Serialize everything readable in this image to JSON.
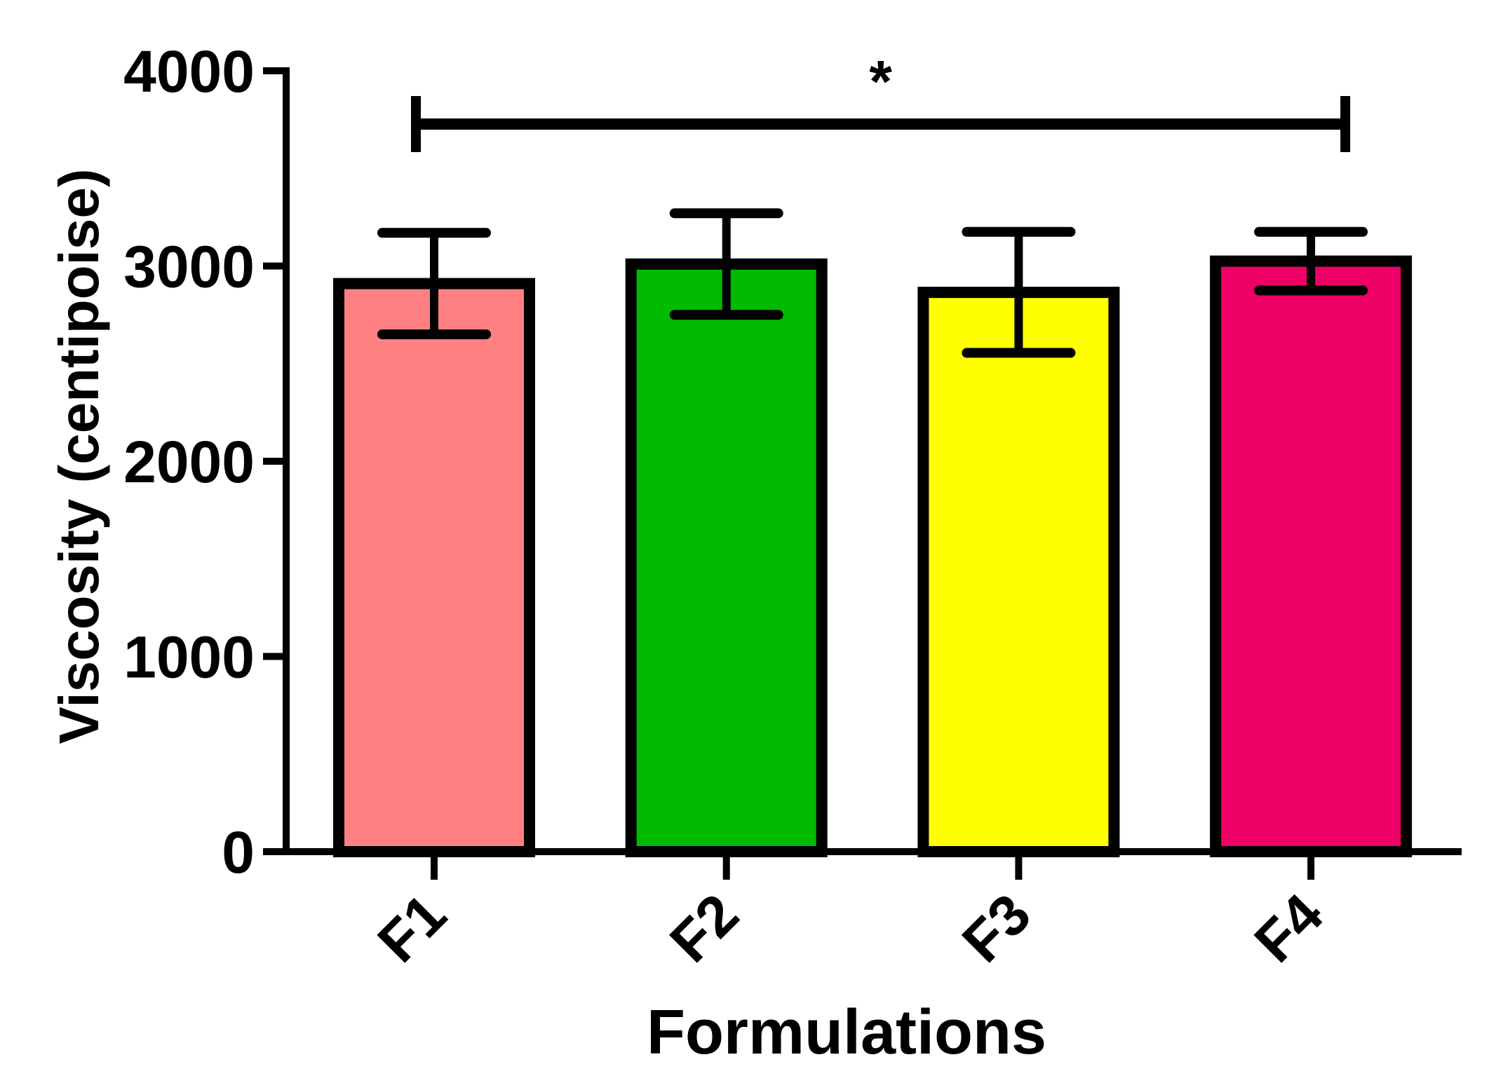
{
  "chart_data": {
    "type": "bar",
    "title": "",
    "xlabel": "Formulations",
    "ylabel": "Viscosity (centipoise)",
    "ylim": [
      0,
      4000
    ],
    "yticks": [
      0,
      1000,
      2000,
      3000,
      4000
    ],
    "ytick_labels": [
      "0",
      "1000",
      "2000",
      "3000",
      "4000"
    ],
    "grid": false,
    "legend": null,
    "categories": [
      "F1",
      "F2",
      "F3",
      "F4"
    ],
    "values": [
      2910,
      3010,
      2865,
      3025
    ],
    "errors": [
      260,
      260,
      310,
      150
    ],
    "colors": [
      "#FF8080",
      "#00BB00",
      "#FFFF00",
      "#EE0066"
    ],
    "significance": [
      {
        "from": "F1",
        "to": "F4",
        "label": "*"
      }
    ]
  },
  "style": {
    "axis_color": "#000000",
    "bar_border_color": "#000000",
    "background": "#FFFFFF"
  }
}
